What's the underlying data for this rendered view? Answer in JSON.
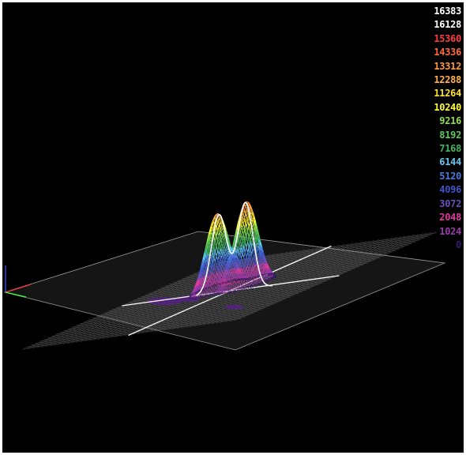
{
  "chart_data": {
    "type": "surface3d",
    "title": "",
    "xlabel": "",
    "ylabel": "",
    "zlabel": "",
    "zlim": [
      0,
      16383
    ],
    "background": "#000000",
    "grid_color": "#8a8a8a",
    "axis_line_color": "#ffffff",
    "grid": true,
    "legend_position": "top-right",
    "peaks": [
      {
        "center": [
          -0.07,
          0.05
        ],
        "height": 13300
      },
      {
        "center": [
          0.17,
          0.02
        ],
        "height": 14500
      }
    ],
    "legend": [
      {
        "label": "16383",
        "color": "#ffffff"
      },
      {
        "label": "16128",
        "color": "#ffffff"
      },
      {
        "label": "15360",
        "color": "#ff3b3b"
      },
      {
        "label": "14336",
        "color": "#ff6a3a"
      },
      {
        "label": "13312",
        "color": "#ff9a3e"
      },
      {
        "label": "12288",
        "color": "#ffb24a"
      },
      {
        "label": "11264",
        "color": "#ffe22a"
      },
      {
        "label": "10240",
        "color": "#ffff30"
      },
      {
        "label": "9216",
        "color": "#8de04a"
      },
      {
        "label": "8192",
        "color": "#5cc85a"
      },
      {
        "label": "7168",
        "color": "#3fb55c"
      },
      {
        "label": "6144",
        "color": "#5fc8f0"
      },
      {
        "label": "5120",
        "color": "#4a7ae0"
      },
      {
        "label": "4096",
        "color": "#3f55c8"
      },
      {
        "label": "3072",
        "color": "#6a50b8"
      },
      {
        "label": "2048",
        "color": "#e03aa0"
      },
      {
        "label": "1024",
        "color": "#9a3aa8"
      },
      {
        "label": "0",
        "color": "#3a1a6a"
      }
    ]
  }
}
